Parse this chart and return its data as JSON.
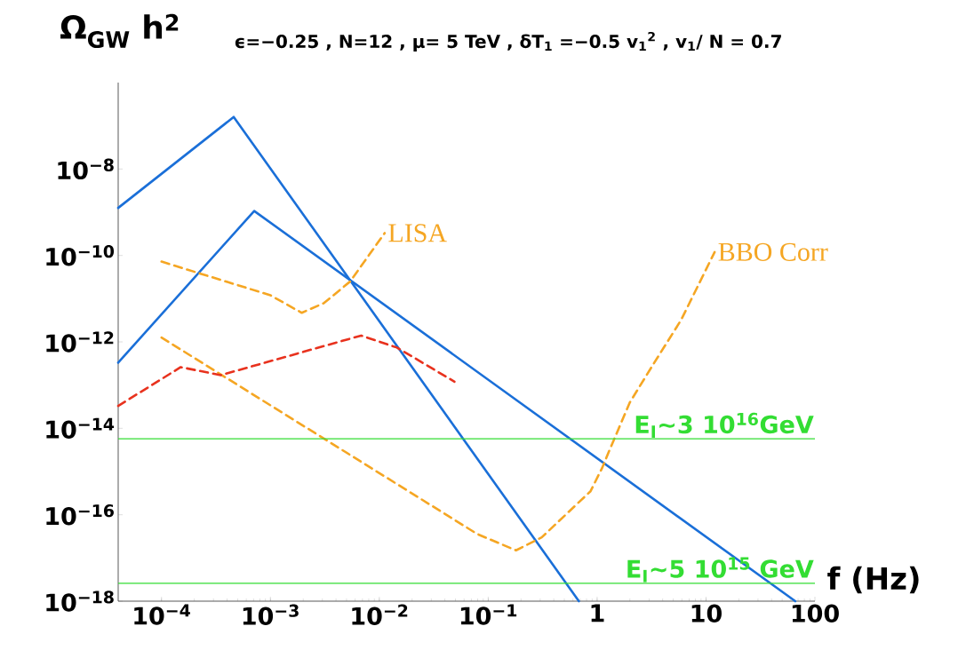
{
  "chart_data": {
    "type": "line",
    "title": "ϵ=−0.25 , N=12 , μ= 5 TeV , δT$_{1}$ =−0.5 v$_{1}$$^{2}$ , v$_{1}$/ N = 0.7",
    "ylabel": "Ω$_{GW}$ h$^{2}$",
    "xlabel": "f (Hz)",
    "log": "xy",
    "xlim": [
      4e-05,
      100
    ],
    "ylim": [
      1e-18,
      1e-06
    ],
    "xticks": [
      {
        "value": 0.0001,
        "label": "10$^{−4}$"
      },
      {
        "value": 0.001,
        "label": "10$^{−3}$"
      },
      {
        "value": 0.01,
        "label": "10$^{−2}$"
      },
      {
        "value": 0.1,
        "label": "10$^{−1}$"
      },
      1,
      10,
      100
    ],
    "yticks": [
      {
        "value": 1e-18,
        "label": "10$^{−18}$"
      },
      {
        "value": 1e-16,
        "label": "10$^{−16}$"
      },
      {
        "value": 1e-14,
        "label": "10$^{−14}$"
      },
      {
        "value": 1e-12,
        "label": "10$^{−12}$"
      },
      {
        "value": 1e-10,
        "label": "10$^{−10}$"
      },
      {
        "value": 1e-08,
        "label": "10$^{−8}$"
      }
    ],
    "marker": "none",
    "series": [
      {
        "color": "#1a6fd8",
        "line_style": "solid",
        "x": [
          4e-05,
          0.00046,
          0.68
        ],
        "values": [
          1.26e-09,
          1.6e-07,
          1e-18
        ]
      },
      {
        "color": "#1a6fd8",
        "line_style": "solid",
        "x": [
          4e-05,
          0.00071,
          66
        ],
        "values": [
          3.3e-13,
          1.07e-09,
          1e-18
        ]
      },
      {
        "name": "LISA",
        "color": "#f5a623",
        "line_style": "dashed",
        "x": [
          0.0001,
          0.001,
          0.00194,
          0.0031,
          0.0054,
          0.0112
        ],
        "values": [
          7.2e-11,
          1.2e-11,
          4.7e-12,
          7.9e-12,
          2.5e-11,
          3.3e-10
        ]
      },
      {
        "name": "BBO Corr",
        "color": "#f5a623",
        "line_style": "dashed",
        "x": [
          0.0001,
          0.079,
          0.18,
          0.31,
          0.87,
          1.12,
          1.29,
          2,
          3.2,
          5.9,
          12
        ],
        "values": [
          1.26e-12,
          3.6e-17,
          1.5e-17,
          3e-17,
          3.5e-16,
          1.26e-15,
          3e-15,
          4e-14,
          2.75e-13,
          3.2e-12,
          1.2e-10
        ]
      },
      {
        "color": "#e8321e",
        "line_style": "dashed",
        "x": [
          4e-05,
          0.00015,
          0.00035,
          0.0068,
          0.0145,
          0.049
        ],
        "values": [
          3.3e-14,
          2.6e-13,
          1.7e-13,
          1.4e-12,
          7.4e-13,
          1.2e-13
        ]
      }
    ],
    "ref_lines": [
      {
        "axis": "y",
        "value": 5.7e-15,
        "label": "E$_{I}$~3 10$^{16}$GeV",
        "color": "#33dd33"
      },
      {
        "axis": "y",
        "value": 2.6e-18,
        "label": "E$_{I}$~5 10$^{15}$ GeV",
        "color": "#33dd33"
      }
    ]
  }
}
